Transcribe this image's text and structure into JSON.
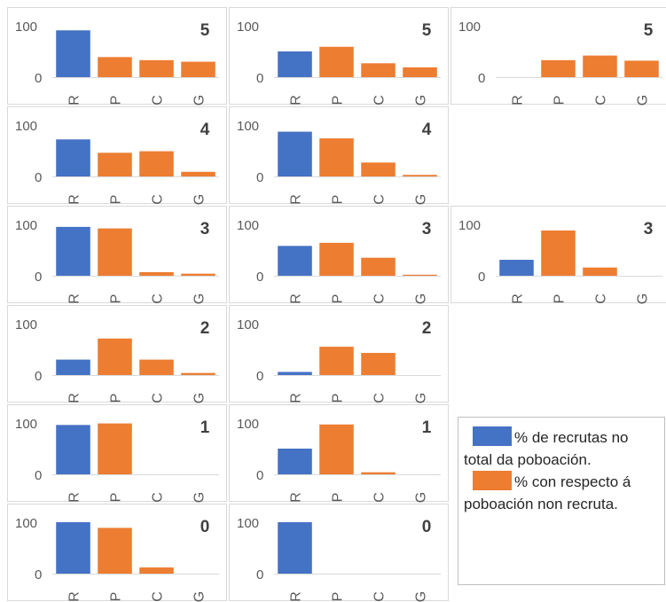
{
  "colors": {
    "recruits": "#4472c4",
    "non_recruits": "#ed7d31",
    "axis_text": "#595959",
    "panel_label": "#404040"
  },
  "legend": {
    "recruits_label": "% de recrutas no total da poboación.",
    "non_recruits_label": "% con respecto á poboación non recruta."
  },
  "chart_data": [
    {
      "type": "bar",
      "label": "5",
      "row": 0,
      "col": 0,
      "categories": [
        "R",
        "P",
        "C",
        "G"
      ],
      "ylim": [
        0,
        100
      ],
      "yticks": [
        0,
        100
      ],
      "series": [
        {
          "values": [
            91,
            0,
            0,
            0
          ]
        },
        {
          "values": [
            0,
            39,
            33,
            30
          ]
        }
      ]
    },
    {
      "type": "bar",
      "label": "5",
      "row": 0,
      "col": 1,
      "categories": [
        "R",
        "P",
        "C",
        "G"
      ],
      "ylim": [
        0,
        100
      ],
      "yticks": [
        0,
        100
      ],
      "series": [
        {
          "values": [
            50,
            0,
            0,
            0
          ]
        },
        {
          "values": [
            0,
            59,
            27,
            19
          ]
        }
      ]
    },
    {
      "type": "bar",
      "label": "5",
      "row": 0,
      "col": 2,
      "categories": [
        "R",
        "P",
        "C",
        "G"
      ],
      "ylim": [
        0,
        100
      ],
      "yticks": [
        0,
        100
      ],
      "series": [
        {
          "values": [
            0,
            0,
            0,
            0
          ]
        },
        {
          "values": [
            0,
            33,
            42,
            32
          ]
        }
      ]
    },
    {
      "type": "bar",
      "label": "4",
      "row": 1,
      "col": 0,
      "categories": [
        "R",
        "P",
        "C",
        "G"
      ],
      "ylim": [
        0,
        100
      ],
      "yticks": [
        0,
        100
      ],
      "series": [
        {
          "values": [
            72,
            0,
            0,
            0
          ]
        },
        {
          "values": [
            0,
            46,
            49,
            9
          ]
        }
      ]
    },
    {
      "type": "bar",
      "label": "4",
      "row": 1,
      "col": 1,
      "categories": [
        "R",
        "P",
        "C",
        "G"
      ],
      "ylim": [
        0,
        100
      ],
      "yticks": [
        0,
        100
      ],
      "series": [
        {
          "values": [
            87,
            0,
            0,
            0
          ]
        },
        {
          "values": [
            0,
            74,
            27,
            3
          ]
        }
      ]
    },
    {
      "type": "bar",
      "label": "3",
      "row": 2,
      "col": 0,
      "categories": [
        "R",
        "P",
        "C",
        "G"
      ],
      "ylim": [
        0,
        100
      ],
      "yticks": [
        0,
        100
      ],
      "series": [
        {
          "values": [
            95,
            0,
            0,
            0
          ]
        },
        {
          "values": [
            0,
            92,
            7,
            4
          ]
        }
      ]
    },
    {
      "type": "bar",
      "label": "3",
      "row": 2,
      "col": 1,
      "categories": [
        "R",
        "P",
        "C",
        "G"
      ],
      "ylim": [
        0,
        100
      ],
      "yticks": [
        0,
        100
      ],
      "series": [
        {
          "values": [
            58,
            0,
            0,
            0
          ]
        },
        {
          "values": [
            0,
            64,
            35,
            2
          ]
        }
      ]
    },
    {
      "type": "bar",
      "label": "3",
      "row": 2,
      "col": 2,
      "categories": [
        "R",
        "P",
        "C",
        "G"
      ],
      "ylim": [
        0,
        100
      ],
      "yticks": [
        0,
        100
      ],
      "series": [
        {
          "values": [
            31,
            0,
            0,
            0
          ]
        },
        {
          "values": [
            0,
            88,
            16,
            0
          ]
        }
      ]
    },
    {
      "type": "bar",
      "label": "2",
      "row": 3,
      "col": 0,
      "categories": [
        "R",
        "P",
        "C",
        "G"
      ],
      "ylim": [
        0,
        100
      ],
      "yticks": [
        0,
        100
      ],
      "series": [
        {
          "values": [
            30,
            0,
            0,
            0
          ]
        },
        {
          "values": [
            0,
            71,
            30,
            4
          ]
        }
      ]
    },
    {
      "type": "bar",
      "label": "2",
      "row": 3,
      "col": 1,
      "categories": [
        "R",
        "P",
        "C",
        "G"
      ],
      "ylim": [
        0,
        100
      ],
      "yticks": [
        0,
        100
      ],
      "series": [
        {
          "values": [
            6,
            0,
            0,
            0
          ]
        },
        {
          "values": [
            0,
            55,
            43,
            0
          ]
        }
      ]
    },
    {
      "type": "bar",
      "label": "1",
      "row": 4,
      "col": 0,
      "categories": [
        "R",
        "P",
        "C",
        "G"
      ],
      "ylim": [
        0,
        100
      ],
      "yticks": [
        0,
        100
      ],
      "series": [
        {
          "values": [
            96,
            0,
            0,
            0
          ]
        },
        {
          "values": [
            0,
            99,
            0,
            0
          ]
        }
      ]
    },
    {
      "type": "bar",
      "label": "1",
      "row": 4,
      "col": 1,
      "categories": [
        "R",
        "P",
        "C",
        "G"
      ],
      "ylim": [
        0,
        100
      ],
      "yticks": [
        0,
        100
      ],
      "series": [
        {
          "values": [
            50,
            0,
            0,
            0
          ]
        },
        {
          "values": [
            0,
            97,
            4,
            0
          ]
        }
      ]
    },
    {
      "type": "bar",
      "label": "0",
      "row": 5,
      "col": 0,
      "categories": [
        "R",
        "P",
        "C",
        "G"
      ],
      "ylim": [
        0,
        100
      ],
      "yticks": [
        0,
        100
      ],
      "series": [
        {
          "values": [
            100,
            0,
            0,
            0
          ]
        },
        {
          "values": [
            0,
            89,
            12,
            0
          ]
        }
      ]
    },
    {
      "type": "bar",
      "label": "0",
      "row": 5,
      "col": 1,
      "categories": [
        "R",
        "P",
        "C",
        "G"
      ],
      "ylim": [
        0,
        100
      ],
      "yticks": [
        0,
        100
      ],
      "series": [
        {
          "values": [
            100,
            0,
            0,
            0
          ]
        },
        {
          "values": [
            0,
            0,
            0,
            0
          ]
        }
      ]
    }
  ]
}
